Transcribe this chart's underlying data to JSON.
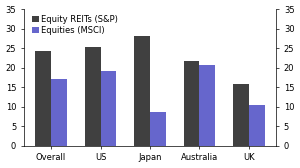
{
  "categories": [
    "Overall",
    "US",
    "Japan",
    "Australia",
    "UK"
  ],
  "equity_reits": [
    24.3,
    25.2,
    28.0,
    21.7,
    15.8
  ],
  "equities": [
    17.0,
    19.2,
    8.7,
    20.6,
    10.5
  ],
  "reits_color": "#404040",
  "equities_color": "#6666cc",
  "legend_labels": [
    "Equity REITs (S&P)",
    "Equities (MSCI)"
  ],
  "ylim": [
    0,
    35
  ],
  "yticks": [
    0,
    5,
    10,
    15,
    20,
    25,
    30,
    35
  ],
  "background_color": "#ffffff",
  "bar_width": 0.32,
  "tick_fontsize": 6.0,
  "legend_fontsize": 6.0
}
